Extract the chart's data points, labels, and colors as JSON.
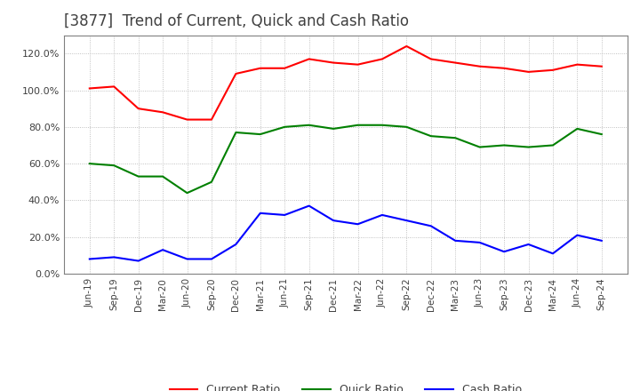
{
  "title": "[3877]  Trend of Current, Quick and Cash Ratio",
  "title_color": "#404040",
  "title_fontsize": 12,
  "background_color": "#ffffff",
  "grid_color": "#b0b0b0",
  "x_labels": [
    "Jun-19",
    "Sep-19",
    "Dec-19",
    "Mar-20",
    "Jun-20",
    "Sep-20",
    "Dec-20",
    "Mar-21",
    "Jun-21",
    "Sep-21",
    "Dec-21",
    "Mar-22",
    "Jun-22",
    "Sep-22",
    "Dec-22",
    "Mar-23",
    "Jun-23",
    "Sep-23",
    "Dec-23",
    "Mar-24",
    "Jun-24",
    "Sep-24"
  ],
  "current_ratio": [
    101.0,
    102.0,
    90.0,
    88.0,
    84.0,
    84.0,
    109.0,
    112.0,
    112.0,
    117.0,
    115.0,
    114.0,
    117.0,
    124.0,
    117.0,
    115.0,
    113.0,
    112.0,
    110.0,
    111.0,
    114.0,
    113.0
  ],
  "quick_ratio": [
    60.0,
    59.0,
    53.0,
    53.0,
    44.0,
    50.0,
    77.0,
    76.0,
    80.0,
    81.0,
    79.0,
    81.0,
    81.0,
    80.0,
    75.0,
    74.0,
    69.0,
    70.0,
    69.0,
    70.0,
    79.0,
    76.0
  ],
  "cash_ratio": [
    8.0,
    9.0,
    7.0,
    13.0,
    8.0,
    8.0,
    16.0,
    33.0,
    32.0,
    37.0,
    29.0,
    27.0,
    32.0,
    29.0,
    26.0,
    18.0,
    17.0,
    12.0,
    16.0,
    11.0,
    21.0,
    18.0
  ],
  "current_color": "#ff0000",
  "quick_color": "#008000",
  "cash_color": "#0000ff",
  "ylim": [
    0,
    130
  ],
  "yticks": [
    0,
    20,
    40,
    60,
    80,
    100,
    120
  ],
  "legend_labels": [
    "Current Ratio",
    "Quick Ratio",
    "Cash Ratio"
  ]
}
